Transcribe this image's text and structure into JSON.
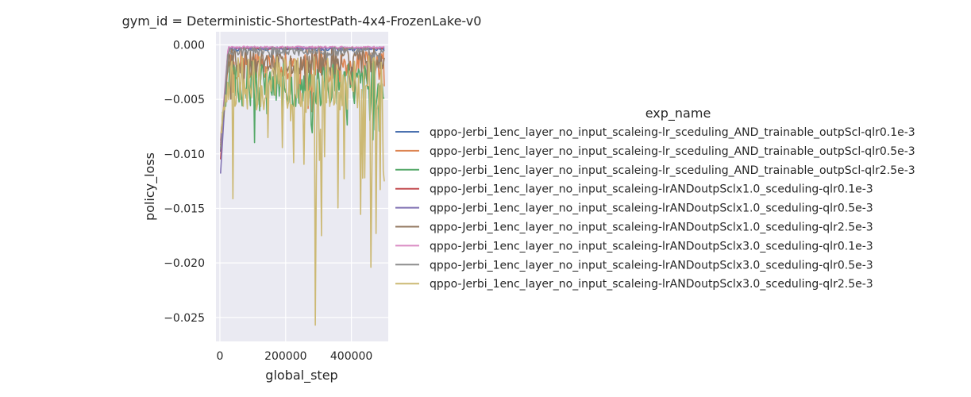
{
  "chart_data": {
    "type": "line",
    "title": "gym_id = Deterministic-ShortestPath-4x4-FrozenLake-v0",
    "xlabel": "global_step",
    "ylabel": "policy_loss",
    "xlim": [
      -12000,
      512000
    ],
    "ylim": [
      -0.0272,
      0.0012
    ],
    "xticks": [
      0,
      200000,
      400000
    ],
    "xtick_labels": [
      "0",
      "200000",
      "400000"
    ],
    "yticks": [
      0.0,
      -0.005,
      -0.01,
      -0.015,
      -0.02,
      -0.025
    ],
    "ytick_labels": [
      "0.000",
      "−0.005",
      "−0.010",
      "−0.015",
      "−0.020",
      "−0.025"
    ],
    "grid": true,
    "background": "#eaeaf2",
    "legend": {
      "title": "exp_name",
      "placement": "right"
    },
    "series": [
      {
        "name": "qppo-Jerbi_1enc_layer_no_input_scaleing-lr_sceduling_AND_trainable_outpScl-qlr0.1e-3",
        "color": "#4c72b0",
        "style": "flat",
        "base": -0.0004,
        "amp": 0.00015,
        "spike": 0,
        "seed": 1,
        "start": -0.0098
      },
      {
        "name": "qppo-Jerbi_1enc_layer_no_input_scaleing-lr_sceduling_AND_trainable_outpScl-qlr0.5e-3",
        "color": "#dd8452",
        "style": "mid",
        "base": -0.0018,
        "amp": 0.0014,
        "spike": 0.0035,
        "seed": 2,
        "start": -0.0092
      },
      {
        "name": "qppo-Jerbi_1enc_layer_no_input_scaleing-lr_sceduling_AND_trainable_outpScl-qlr2.5e-3",
        "color": "#55a868",
        "style": "noisy",
        "base": -0.0035,
        "amp": 0.0022,
        "spike": 0.0045,
        "seed": 3,
        "start": -0.0085
      },
      {
        "name": "qppo-Jerbi_1enc_layer_no_input_scaleing-lrANDoutpSclx1.0_sceduling-qlr0.1e-3",
        "color": "#c44e52",
        "style": "flat",
        "base": -0.0003,
        "amp": 0.0001,
        "spike": 0,
        "seed": 4,
        "start": -0.0105
      },
      {
        "name": "qppo-Jerbi_1enc_layer_no_input_scaleing-lrANDoutpSclx1.0_sceduling-qlr0.5e-3",
        "color": "#8172b3",
        "style": "flat",
        "base": -0.0003,
        "amp": 0.00012,
        "spike": 0,
        "seed": 5,
        "start": -0.0118
      },
      {
        "name": "qppo-Jerbi_1enc_layer_no_input_scaleing-lrANDoutpSclx1.0_sceduling-qlr2.5e-3",
        "color": "#937860",
        "style": "mid",
        "base": -0.0015,
        "amp": 0.0013,
        "spike": 0.003,
        "seed": 6,
        "start": -0.0088
      },
      {
        "name": "qppo-Jerbi_1enc_layer_no_input_scaleing-lrANDoutpSclx3.0_sceduling-qlr0.1e-3",
        "color": "#da8bc3",
        "style": "flat",
        "base": -0.0002,
        "amp": 8e-05,
        "spike": 0,
        "seed": 7,
        "start": -0.009
      },
      {
        "name": "qppo-Jerbi_1enc_layer_no_input_scaleing-lrANDoutpSclx3.0_sceduling-qlr0.5e-3",
        "color": "#8c8c8c",
        "style": "flat",
        "base": -0.0006,
        "amp": 0.0004,
        "spike": 0.0008,
        "seed": 8,
        "start": -0.0095
      },
      {
        "name": "qppo-Jerbi_1enc_layer_no_input_scaleing-lrANDoutpSclx3.0_sceduling-qlr2.5e-3",
        "color": "#ccb974",
        "style": "spiky",
        "base": -0.0035,
        "amp": 0.0025,
        "spike": 0.012,
        "seed": 9,
        "start": -0.008,
        "spikes": [
          [
            145000,
            -0.0085
          ],
          [
            290000,
            -0.0257
          ],
          [
            310000,
            -0.0175
          ],
          [
            460000,
            -0.0204
          ],
          [
            475000,
            -0.0173
          ],
          [
            440000,
            -0.0122
          ]
        ]
      }
    ],
    "x_start": 2000,
    "x_end": 500000,
    "n_points": 160
  }
}
